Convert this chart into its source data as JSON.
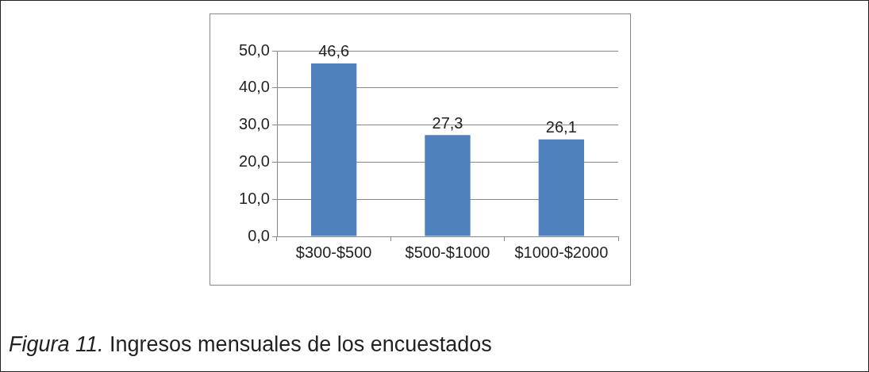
{
  "chart_data": {
    "type": "bar",
    "categories": [
      "$300-$500",
      "$500-$1000",
      "$1000-$2000"
    ],
    "values": [
      46.6,
      27.3,
      26.1
    ],
    "value_labels": [
      "46,6",
      "27,3",
      "26,1"
    ],
    "color": "#4f81bd",
    "ylim": [
      0,
      50
    ],
    "yticks": [
      {
        "value": 0,
        "label": "0,0"
      },
      {
        "value": 10,
        "label": "10,0"
      },
      {
        "value": 20,
        "label": "20,0"
      },
      {
        "value": 30,
        "label": "30,0"
      },
      {
        "value": 40,
        "label": "40,0"
      },
      {
        "value": 50,
        "label": "50,0"
      }
    ],
    "grid": "y",
    "legend": false,
    "annotations": [
      "Figura 11.",
      "Ingresos mensuales de los encuestados"
    ]
  }
}
